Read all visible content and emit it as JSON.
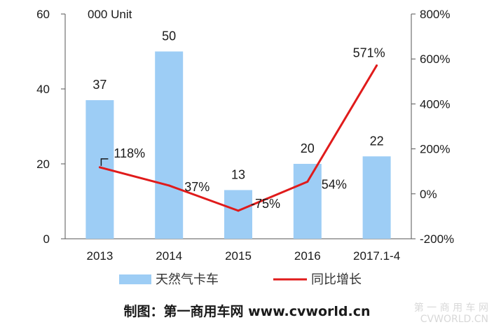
{
  "chart_data": {
    "type": "bar",
    "categories": [
      "2013",
      "2014",
      "2015",
      "2016",
      "2017.1-4"
    ],
    "unit_label": "000 Unit",
    "y_left": {
      "min": 0,
      "max": 60,
      "ticks": [
        "0",
        "20",
        "40",
        "60"
      ]
    },
    "y_right": {
      "min": -200,
      "max": 800,
      "ticks": [
        "-200%",
        "0%",
        "200%",
        "400%",
        "600%",
        "800%"
      ]
    },
    "series": [
      {
        "name": "天然气卡车",
        "kind": "bar",
        "axis": "left",
        "color": "#9dcdf5",
        "values": [
          37,
          50,
          13,
          20,
          22
        ],
        "labels": [
          "37",
          "50",
          "13",
          "20",
          "22"
        ]
      },
      {
        "name": "同比增长",
        "kind": "line",
        "axis": "right",
        "color": "#e01b1b",
        "values": [
          118,
          37,
          -75,
          54,
          571
        ],
        "labels": [
          "118%",
          "37%",
          "-75%",
          "54%",
          "571%"
        ]
      }
    ],
    "legend_placement": "bottom",
    "grid": false
  },
  "footer": {
    "credit": "制图：第一商用车网 www.cvworld.cn"
  },
  "watermark": {
    "line1": "第 一 商 用 车 网",
    "line2": "CVWORLD.CN"
  }
}
